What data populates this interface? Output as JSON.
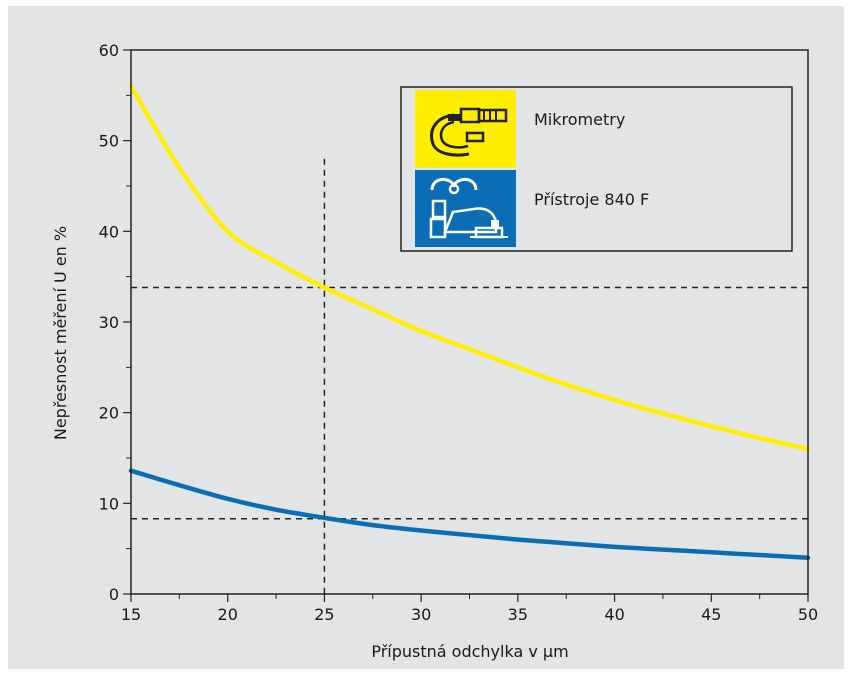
{
  "chart_data": {
    "type": "line",
    "title": "",
    "xlabel": "Přípustná odchylka v µm",
    "ylabel": "Nepřesnost měření U en %",
    "xlim": [
      15,
      50
    ],
    "ylim": [
      0,
      60
    ],
    "x_ticks": [
      15,
      20,
      25,
      30,
      35,
      40,
      45,
      50
    ],
    "y_ticks": [
      0,
      10,
      20,
      30,
      40,
      50,
      60
    ],
    "grid": false,
    "legend_position": "top-right",
    "series": [
      {
        "name": "Mikrometry",
        "color": "#ffee00",
        "icon": "micrometer-icon",
        "x": [
          15,
          17.5,
          20,
          22.5,
          25,
          27.5,
          30,
          32.5,
          35,
          37.5,
          40,
          42.5,
          45,
          47.5,
          50
        ],
        "y": [
          56,
          47,
          40,
          36.6,
          33.8,
          31.4,
          29,
          27,
          25,
          23.1,
          21.4,
          19.9,
          18.5,
          17.2,
          16
        ]
      },
      {
        "name": "Přístroje 840 F",
        "color": "#0a6db5",
        "icon": "gauge-840f-icon",
        "x": [
          15,
          17.5,
          20,
          22.5,
          25,
          27.5,
          30,
          32.5,
          35,
          37.5,
          40,
          42.5,
          45,
          47.5,
          50
        ],
        "y": [
          13.6,
          12,
          10.5,
          9.3,
          8.4,
          7.6,
          7,
          6.5,
          6.0,
          5.6,
          5.2,
          4.9,
          4.6,
          4.3,
          4.0
        ]
      }
    ],
    "reference_lines": {
      "vertical_x": 25,
      "horizontal_y": [
        33.8,
        8.3
      ]
    }
  }
}
